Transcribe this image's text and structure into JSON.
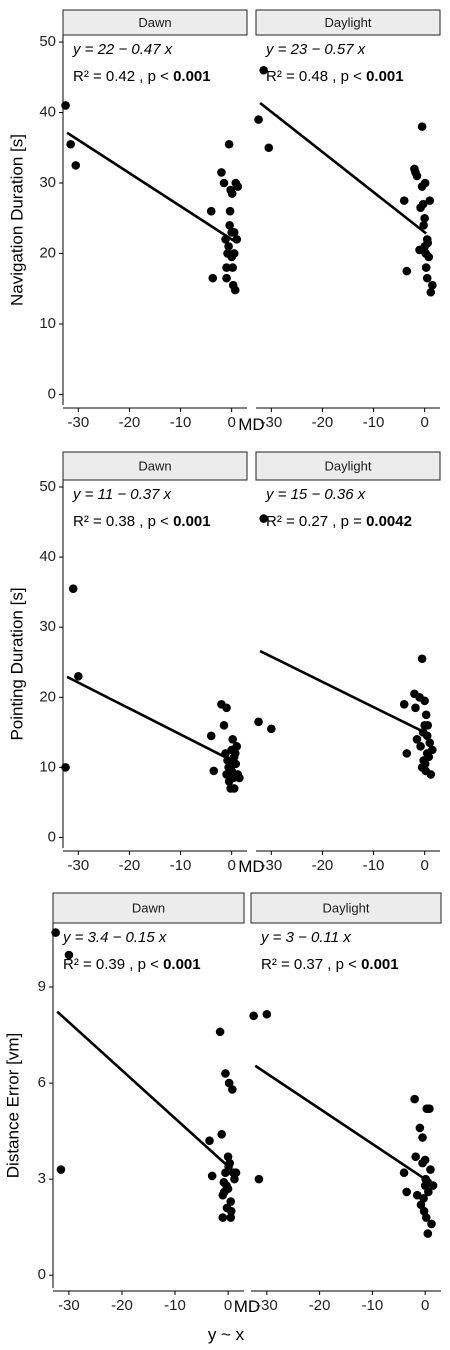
{
  "footer": "y ~ x",
  "chart_data": [
    {
      "type": "scatter",
      "xlabel": "MD",
      "ylabel": "Navigation Duration [s]",
      "xlim": [
        -33,
        3
      ],
      "ylim": [
        -1.5,
        51
      ],
      "xticks": [
        -30,
        -20,
        -10,
        0
      ],
      "yticks": [
        0,
        10,
        20,
        30,
        40,
        50
      ],
      "panels": [
        {
          "strip": "Dawn",
          "eq": "y = 22 − 0.47 x",
          "r2": "R² = 0.42",
          "p_prefix": ", p <",
          "p_value": "0.001",
          "fit": {
            "intercept": 22,
            "slope": -0.47
          },
          "x": [
            -32.5,
            -31.5,
            -30.5,
            -4,
            -3.7,
            -2,
            -1.5,
            -1.2,
            -1,
            -1,
            -0.8,
            -0.6,
            -0.5,
            -0.3,
            -0.2,
            0,
            0,
            0.2,
            0.3,
            0.5,
            0.5,
            0.8,
            1,
            1.2,
            0.1,
            -0.4,
            0.7
          ],
          "y": [
            41,
            35.5,
            32.5,
            26,
            16.5,
            31.5,
            30,
            22,
            18,
            16.5,
            20,
            21,
            35.5,
            26,
            29,
            23,
            19.5,
            18,
            15.5,
            23,
            20,
            30,
            22,
            29.5,
            28.5,
            24,
            14.8
          ]
        },
        {
          "strip": "Daylight",
          "eq": "y = 23 − 0.57 x",
          "r2": "R² = 0.48",
          "p_prefix": ", p <",
          "p_value": "0.001",
          "fit": {
            "intercept": 23,
            "slope": -0.57
          },
          "x": [
            -32.5,
            -31.5,
            -30.5,
            -4,
            -3.5,
            -2,
            -1.8,
            -1.5,
            -1,
            -0.8,
            -0.5,
            -0.5,
            -0.2,
            0,
            0,
            0.2,
            0.3,
            0.5,
            0.5,
            0.8,
            1,
            1.2,
            1.5,
            -0.3,
            0.1,
            0.6
          ],
          "y": [
            39,
            46,
            35,
            27.5,
            17.5,
            32,
            31.5,
            31,
            20.5,
            26.5,
            38,
            29.5,
            24,
            25,
            21,
            20,
            18,
            22,
            16.5,
            19.5,
            27.5,
            14.5,
            15.5,
            27,
            30,
            21.5
          ]
        }
      ]
    },
    {
      "type": "scatter",
      "xlabel": "MD",
      "ylabel": "Pointing Duration [s]",
      "xlim": [
        -33,
        3
      ],
      "ylim": [
        -1.5,
        51
      ],
      "xticks": [
        -30,
        -20,
        -10,
        0
      ],
      "yticks": [
        0,
        10,
        20,
        30,
        40,
        50
      ],
      "panels": [
        {
          "strip": "Dawn",
          "eq": "y = 11 − 0.37 x",
          "r2": "R² = 0.38",
          "p_prefix": ", p <",
          "p_value": "0.001",
          "fit": {
            "intercept": 11,
            "slope": -0.37
          },
          "x": [
            -32.5,
            -31,
            -30,
            -4,
            -3.5,
            -2,
            -1.5,
            -1.2,
            -1,
            -1,
            -0.8,
            -0.5,
            -0.3,
            -0.2,
            0,
            0,
            0.2,
            0.3,
            0.5,
            0.5,
            0.8,
            1,
            1.2,
            1.5,
            -0.6,
            0.1,
            0.7
          ],
          "y": [
            10,
            35.5,
            23,
            14.5,
            9.5,
            19,
            16,
            12,
            9,
            18.5,
            11,
            8,
            10,
            7,
            12.5,
            9.5,
            14,
            8.5,
            11.5,
            7,
            10.5,
            13,
            9,
            8.5,
            10,
            11,
            12
          ]
        },
        {
          "strip": "Daylight",
          "eq": "y = 15 − 0.36 x",
          "r2": "R² = 0.27",
          "p_prefix": ", p =",
          "p_value": "0.0042",
          "fit": {
            "intercept": 15,
            "slope": -0.36
          },
          "x": [
            -32.5,
            -31.5,
            -30,
            -4,
            -3.5,
            -2,
            -1.8,
            -1.5,
            -1,
            -0.8,
            -0.5,
            -0.5,
            -0.2,
            0,
            0,
            0.2,
            0.3,
            0.5,
            0.5,
            0.8,
            1,
            1.2,
            1.5,
            -0.3,
            0.1,
            0.6
          ],
          "y": [
            16.5,
            45.5,
            15.5,
            19,
            12,
            20.5,
            18.5,
            14,
            20,
            13,
            25.5,
            10,
            11,
            19.5,
            16,
            9.5,
            17.5,
            14.5,
            12,
            11.5,
            13.5,
            9,
            12.5,
            15,
            10.5,
            16
          ]
        }
      ]
    },
    {
      "type": "scatter",
      "xlabel": "MD",
      "ylabel": "Distance Error [vm]",
      "xlim": [
        -33,
        3
      ],
      "ylim": [
        -0.4,
        11
      ],
      "xticks": [
        -30,
        -20,
        -10,
        0
      ],
      "yticks": [
        0,
        3,
        6,
        9
      ],
      "panels": [
        {
          "strip": "Dawn",
          "eq": "y = 3.4 − 0.15 x",
          "r2": "R² = 0.39",
          "p_prefix": ", p <",
          "p_value": "0.001",
          "fit": {
            "intercept": 3.4,
            "slope": -0.15
          },
          "x": [
            -32.5,
            -31.5,
            -30,
            -3.5,
            -3,
            -1.5,
            -1.2,
            -1,
            -1,
            -0.8,
            -0.5,
            -0.5,
            -0.2,
            0,
            0,
            0.2,
            0.3,
            0.5,
            0.5,
            0.8,
            1,
            1.2,
            1.5,
            -0.3,
            0.1,
            0.6,
            -0.7
          ],
          "y": [
            10.7,
            3.3,
            10,
            4.2,
            3.1,
            7.6,
            4.4,
            2.5,
            1.8,
            2.9,
            6.3,
            3.2,
            2.1,
            3.7,
            2.7,
            6,
            3.5,
            1.8,
            2.3,
            5.8,
            3.2,
            3,
            3.2,
            2.8,
            3.4,
            2.0,
            2.6
          ]
        },
        {
          "strip": "Daylight",
          "eq": "y = 3 − 0.11 x",
          "r2": "R² = 0.37",
          "p_prefix": ", p <",
          "p_value": "0.001",
          "fit": {
            "intercept": 3,
            "slope": -0.11
          },
          "x": [
            -32.5,
            -31.5,
            -30,
            -4,
            -3.5,
            -2,
            -1.8,
            -1.5,
            -1,
            -0.8,
            -0.5,
            -0.5,
            -0.2,
            0,
            0,
            0.2,
            0.3,
            0.5,
            0.5,
            0.8,
            1,
            1.2,
            1.5,
            -0.3,
            0.1,
            0.6
          ],
          "y": [
            8.1,
            3.0,
            8.15,
            3.2,
            2.6,
            5.5,
            3.7,
            2.5,
            4.6,
            2.2,
            4.3,
            3.5,
            2.0,
            3.6,
            2.8,
            1.8,
            5.2,
            2.9,
            1.3,
            5.2,
            3.3,
            1.6,
            2.8,
            2.4,
            3.0,
            2.6
          ]
        }
      ]
    }
  ]
}
